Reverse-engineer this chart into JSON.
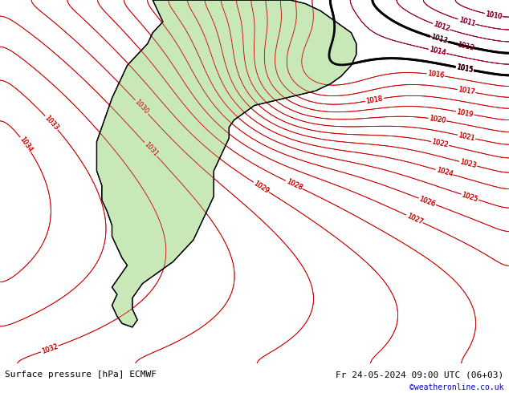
{
  "title_left": "Surface pressure [hPa] ECMWF",
  "title_right": "Fr 24-05-2024 09:00 UTC (06+03)",
  "credit": "©weatheronline.co.uk",
  "fig_width": 6.34,
  "fig_height": 4.9,
  "dpi": 100,
  "bg_color_ocean": "#d0d0d0",
  "bg_color_land_green": "#c8e8b8",
  "contour_color_red": "#cc0000",
  "contour_color_blue": "#0000cc",
  "contour_color_black": "#000000",
  "bottom_bar_color": "#e0e0e0",
  "bottom_text_color": "#000000",
  "credit_color": "#0000cc",
  "font_size_labels": 6,
  "font_size_bottom": 8,
  "font_size_credit": 7
}
